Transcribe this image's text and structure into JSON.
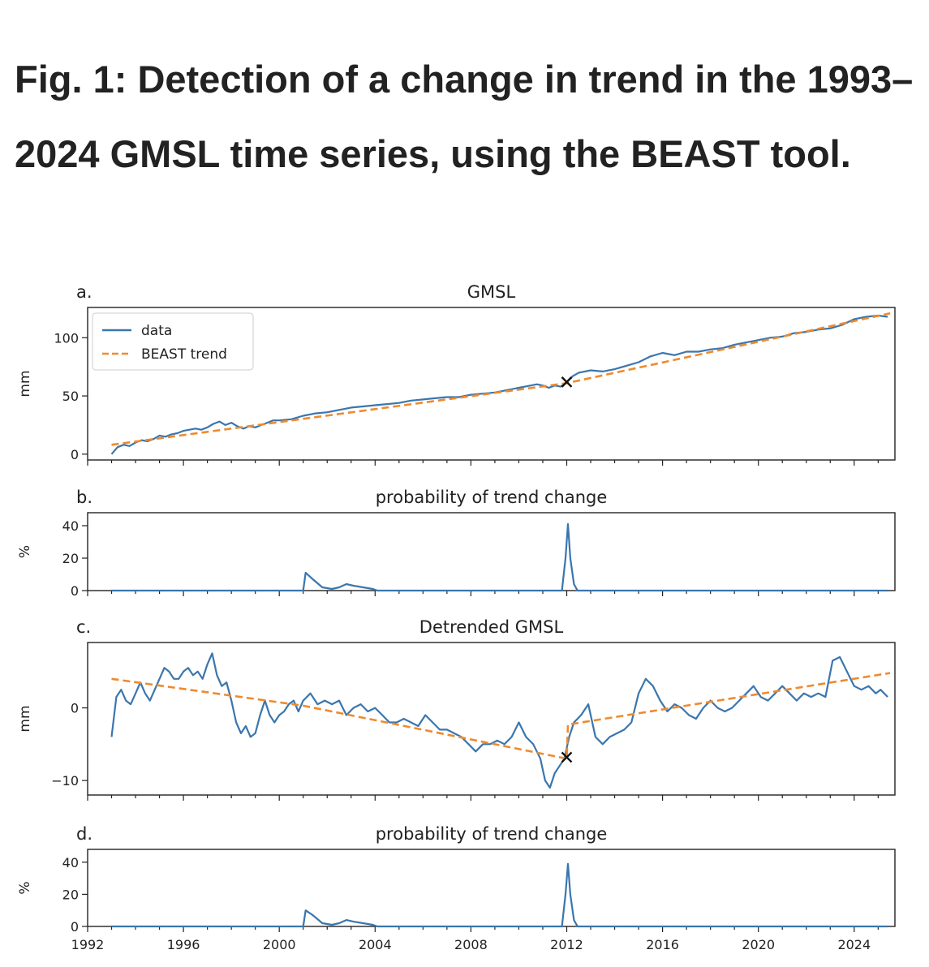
{
  "figure": {
    "title": "Fig. 1: Detection of a change in trend in the 1993–2024 GMSL time series, using the BEAST tool."
  },
  "colors": {
    "data": "#3a76ad",
    "trend": "#ef8a2e",
    "axis": "#222222",
    "marker": "#111111"
  },
  "chart_data": [
    {
      "panel": "a.",
      "type": "line",
      "title": "GMSL",
      "ylabel": "mm",
      "xlabel": "",
      "xlim": [
        1992,
        2025.7
      ],
      "ylim": [
        -5,
        126
      ],
      "yticks": [
        0,
        50,
        100
      ],
      "legend": {
        "position": "top-left",
        "entries": [
          "data",
          "BEAST trend"
        ]
      },
      "change_point": {
        "x": 2012.0,
        "y": 62
      },
      "series": [
        {
          "name": "data",
          "x": [
            1993.0,
            1993.25,
            1993.5,
            1993.75,
            1994.0,
            1994.25,
            1994.5,
            1994.75,
            1995.0,
            1995.25,
            1995.5,
            1995.75,
            1996.0,
            1996.25,
            1996.5,
            1996.75,
            1997.0,
            1997.25,
            1997.5,
            1997.75,
            1998.0,
            1998.25,
            1998.5,
            1998.75,
            1999.0,
            1999.25,
            1999.5,
            1999.75,
            2000.0,
            2000.5,
            2001.0,
            2001.5,
            2002.0,
            2002.5,
            2003.0,
            2003.5,
            2004.0,
            2004.5,
            2005.0,
            2005.5,
            2006.0,
            2006.5,
            2007.0,
            2007.5,
            2008.0,
            2008.5,
            2009.0,
            2009.5,
            2010.0,
            2010.5,
            2010.75,
            2011.0,
            2011.25,
            2011.5,
            2011.75,
            2012.0,
            2012.25,
            2012.5,
            2013.0,
            2013.5,
            2014.0,
            2014.5,
            2015.0,
            2015.5,
            2016.0,
            2016.5,
            2017.0,
            2017.5,
            2018.0,
            2018.5,
            2019.0,
            2019.5,
            2020.0,
            2020.5,
            2021.0,
            2021.5,
            2022.0,
            2022.5,
            2023.0,
            2023.5,
            2024.0,
            2024.5,
            2025.0,
            2025.4
          ],
          "values": [
            0,
            6,
            8,
            7,
            10,
            12,
            11,
            13,
            16,
            15,
            17,
            18,
            20,
            21,
            22,
            21,
            23,
            26,
            28,
            25,
            27,
            24,
            22,
            24,
            23,
            25,
            27,
            29,
            29,
            30,
            33,
            35,
            36,
            38,
            40,
            41,
            42,
            43,
            44,
            46,
            47,
            48,
            49,
            49,
            51,
            52,
            53,
            55,
            57,
            59,
            60,
            59,
            57,
            59,
            58,
            62,
            67,
            70,
            72,
            71,
            73,
            76,
            79,
            84,
            87,
            85,
            88,
            88,
            90,
            91,
            94,
            96,
            98,
            100,
            101,
            104,
            105,
            107,
            108,
            111,
            116,
            118,
            119,
            118
          ]
        },
        {
          "name": "BEAST trend",
          "x": [
            1993.0,
            2012.0,
            2025.5
          ],
          "values": [
            8,
            61,
            121
          ]
        }
      ]
    },
    {
      "panel": "b.",
      "type": "line",
      "title": "probability of trend change",
      "ylabel": "%",
      "xlabel": "",
      "xlim": [
        1992,
        2025.7
      ],
      "ylim": [
        0,
        48
      ],
      "yticks": [
        0,
        20,
        40
      ],
      "series": [
        {
          "name": "probability",
          "x": [
            1993.0,
            2001.0,
            2001.1,
            2001.4,
            2001.8,
            2002.2,
            2002.5,
            2002.8,
            2003.1,
            2003.5,
            2003.9,
            2004.1,
            2011.8,
            2011.95,
            2012.05,
            2012.15,
            2012.3,
            2012.45,
            2025.4
          ],
          "values": [
            0,
            0,
            11,
            7,
            2,
            1,
            2,
            4,
            3,
            2,
            1,
            0,
            0,
            20,
            41,
            20,
            4,
            0,
            0
          ]
        }
      ]
    },
    {
      "panel": "c.",
      "type": "line",
      "title": "Detrended GMSL",
      "ylabel": "mm",
      "xlabel": "",
      "xlim": [
        1992,
        2025.7
      ],
      "ylim": [
        -12,
        9
      ],
      "yticks": [
        -10,
        0
      ],
      "change_point": {
        "x": 2012.0,
        "y": -6.8
      },
      "series": [
        {
          "name": "data",
          "x": [
            1993.0,
            1993.2,
            1993.4,
            1993.6,
            1993.8,
            1994.0,
            1994.2,
            1994.4,
            1994.6,
            1994.8,
            1995.0,
            1995.2,
            1995.4,
            1995.6,
            1995.8,
            1996.0,
            1996.2,
            1996.4,
            1996.6,
            1996.8,
            1997.0,
            1997.2,
            1997.4,
            1997.6,
            1997.8,
            1998.0,
            1998.2,
            1998.4,
            1998.6,
            1998.8,
            1999.0,
            1999.2,
            1999.4,
            1999.6,
            1999.8,
            2000.0,
            2000.2,
            2000.4,
            2000.6,
            2000.8,
            2001.0,
            2001.3,
            2001.6,
            2001.9,
            2002.2,
            2002.5,
            2002.8,
            2003.1,
            2003.4,
            2003.7,
            2004.0,
            2004.3,
            2004.6,
            2004.9,
            2005.2,
            2005.5,
            2005.8,
            2006.1,
            2006.4,
            2006.7,
            2007.0,
            2007.3,
            2007.6,
            2007.9,
            2008.2,
            2008.5,
            2008.8,
            2009.1,
            2009.4,
            2009.7,
            2010.0,
            2010.3,
            2010.6,
            2010.9,
            2011.1,
            2011.3,
            2011.5,
            2011.7,
            2011.9,
            2012.1,
            2012.3,
            2012.6,
            2012.9,
            2013.2,
            2013.5,
            2013.8,
            2014.1,
            2014.4,
            2014.7,
            2015.0,
            2015.3,
            2015.6,
            2015.9,
            2016.2,
            2016.5,
            2016.8,
            2017.1,
            2017.4,
            2017.7,
            2018.0,
            2018.3,
            2018.6,
            2018.9,
            2019.2,
            2019.5,
            2019.8,
            2020.1,
            2020.4,
            2020.7,
            2021.0,
            2021.3,
            2021.6,
            2021.9,
            2022.2,
            2022.5,
            2022.8,
            2023.1,
            2023.4,
            2023.7,
            2024.0,
            2024.3,
            2024.6,
            2024.9,
            2025.1,
            2025.4
          ],
          "values": [
            -4,
            1.5,
            2.5,
            1,
            0.5,
            2,
            3.5,
            2,
            1,
            2.5,
            4,
            5.5,
            5,
            4,
            4,
            5,
            5.5,
            4.5,
            5,
            4,
            6,
            7.5,
            4.5,
            3,
            3.5,
            1,
            -2,
            -3.5,
            -2.5,
            -4,
            -3.5,
            -1,
            1,
            -1,
            -2,
            -1,
            -0.5,
            0.5,
            1,
            -0.5,
            1,
            2,
            0.5,
            1,
            0.5,
            1,
            -1,
            0,
            0.5,
            -0.5,
            0,
            -1,
            -2,
            -2,
            -1.5,
            -2,
            -2.5,
            -1,
            -2,
            -3,
            -3,
            -3.5,
            -4,
            -5,
            -6,
            -5,
            -5,
            -4.5,
            -5,
            -4,
            -2,
            -4,
            -5,
            -7,
            -10,
            -11,
            -9,
            -8,
            -7,
            -4,
            -2,
            -1,
            0.5,
            -4,
            -5,
            -4,
            -3.5,
            -3,
            -2,
            2,
            4,
            3,
            1,
            -0.5,
            0.5,
            0,
            -1,
            -1.5,
            0,
            1,
            0,
            -0.5,
            0,
            1,
            2,
            3,
            1.5,
            1,
            2,
            3,
            2,
            1,
            2,
            1.5,
            2,
            1.5,
            6.5,
            7,
            5,
            3,
            2.5,
            3,
            2,
            2.5,
            1.5
          ]
        },
        {
          "name": "BEAST trend",
          "x": [
            1993.0,
            2001.0,
            2012.0,
            2012.05,
            2025.5
          ],
          "values": [
            4,
            0.3,
            -7,
            -2.3,
            4.8
          ]
        }
      ]
    },
    {
      "panel": "d.",
      "type": "line",
      "title": "probability of trend change",
      "ylabel": "%",
      "xlabel": "",
      "xlim": [
        1992,
        2025.7
      ],
      "ylim": [
        0,
        48
      ],
      "yticks": [
        0,
        20,
        40
      ],
      "xticks": [
        1992,
        1996,
        2000,
        2004,
        2008,
        2012,
        2016,
        2020,
        2024
      ],
      "series": [
        {
          "name": "probability",
          "x": [
            1993.0,
            2001.0,
            2001.1,
            2001.4,
            2001.8,
            2002.2,
            2002.5,
            2002.8,
            2003.1,
            2003.5,
            2003.9,
            2004.1,
            2011.8,
            2011.95,
            2012.05,
            2012.15,
            2012.3,
            2012.45,
            2025.4
          ],
          "values": [
            0,
            0,
            10,
            7,
            2,
            1,
            2,
            4,
            3,
            2,
            1,
            0,
            0,
            20,
            39,
            20,
            4,
            0,
            0
          ]
        }
      ]
    }
  ]
}
